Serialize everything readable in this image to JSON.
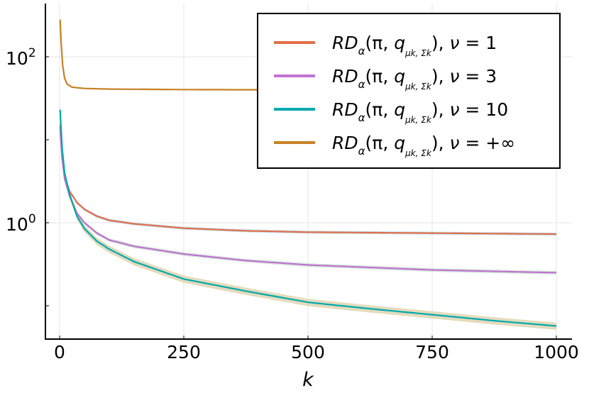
{
  "chart_data": {
    "type": "line",
    "title": "",
    "xlabel": "k",
    "ylabel": "",
    "xlim": [
      -30,
      1030
    ],
    "ylim": [
      0.04,
      440
    ],
    "yscale": "log",
    "grid": true,
    "legend_position": "top-right",
    "xticks": [
      0,
      250,
      500,
      750,
      1000
    ],
    "xtick_labels": [
      "0",
      "250",
      "500",
      "750",
      "1000"
    ],
    "yticks": [
      100,
      1
    ],
    "ytick_labels": [
      {
        "base": "10",
        "exp": "2"
      },
      {
        "base": "10",
        "exp": "0"
      }
    ],
    "series": [
      {
        "name": "RDα(π, qμk, Σk), ν = 1",
        "label": {
          "a": "RD",
          "s": "α",
          "b": "(π, ",
          "q": "q",
          "s2": "μk, Σk",
          "c": "), ",
          "nu": "ν",
          "eq": " = 1"
        },
        "color": "#e26f46",
        "band_color": "#a9d3f0",
        "band_rel": 0.04,
        "points": [
          [
            1,
            15
          ],
          [
            5,
            6
          ],
          [
            10,
            3.6
          ],
          [
            20,
            2.4
          ],
          [
            35,
            1.75
          ],
          [
            50,
            1.45
          ],
          [
            75,
            1.2
          ],
          [
            100,
            1.07
          ],
          [
            150,
            0.97
          ],
          [
            250,
            0.86
          ],
          [
            375,
            0.8
          ],
          [
            500,
            0.77
          ],
          [
            750,
            0.75
          ],
          [
            1000,
            0.73
          ]
        ]
      },
      {
        "name": "RDα(π, qμk, Σk), ν = 3",
        "label": {
          "a": "RD",
          "s": "α",
          "b": "(π, ",
          "q": "q",
          "s2": "μk, Σk",
          "c": "), ",
          "nu": "ν",
          "eq": " = 3"
        },
        "color": "#c271d2",
        "band_color": "#bfe3c8",
        "band_rel": 0.05,
        "points": [
          [
            1,
            14
          ],
          [
            5,
            6
          ],
          [
            10,
            3.4
          ],
          [
            20,
            2.1
          ],
          [
            35,
            1.3
          ],
          [
            50,
            1.0
          ],
          [
            75,
            0.75
          ],
          [
            100,
            0.62
          ],
          [
            150,
            0.52
          ],
          [
            250,
            0.42
          ],
          [
            375,
            0.35
          ],
          [
            500,
            0.31
          ],
          [
            750,
            0.27
          ],
          [
            1000,
            0.25
          ]
        ]
      },
      {
        "name": "RDα(π, qμk, Σk), ν = 10",
        "label": {
          "a": "RD",
          "s": "α",
          "b": "(π, ",
          "q": "q",
          "s2": "μk, Σk",
          "c": "), ",
          "nu": "ν",
          "eq": " = 10"
        },
        "color": "#00a9ad",
        "band_color": "#d9cca0",
        "band_rel": 0.1,
        "points": [
          [
            1,
            23
          ],
          [
            5,
            8
          ],
          [
            10,
            4
          ],
          [
            20,
            2.2
          ],
          [
            35,
            1.2
          ],
          [
            50,
            0.85
          ],
          [
            75,
            0.6
          ],
          [
            100,
            0.48
          ],
          [
            150,
            0.34
          ],
          [
            250,
            0.21
          ],
          [
            375,
            0.15
          ],
          [
            500,
            0.11
          ],
          [
            625,
            0.092
          ],
          [
            750,
            0.078
          ],
          [
            875,
            0.066
          ],
          [
            1000,
            0.057
          ]
        ]
      },
      {
        "name": "RDα(π, qμk, Σk), ν = +∞",
        "label": {
          "a": "RD",
          "s": "α",
          "b": "(π, ",
          "q": "q",
          "s2": "μk, Σk",
          "c": "), ",
          "nu": "ν",
          "eq": " = +∞"
        },
        "color": "#c88124",
        "band_color": null,
        "band_rel": 0,
        "points": [
          [
            1,
            280
          ],
          [
            3,
            150
          ],
          [
            6,
            80
          ],
          [
            10,
            55
          ],
          [
            15,
            47
          ],
          [
            25,
            43
          ],
          [
            50,
            41.5
          ],
          [
            100,
            40.8
          ],
          [
            250,
            40.2
          ],
          [
            400,
            40
          ],
          [
            1000,
            40
          ]
        ]
      }
    ]
  }
}
